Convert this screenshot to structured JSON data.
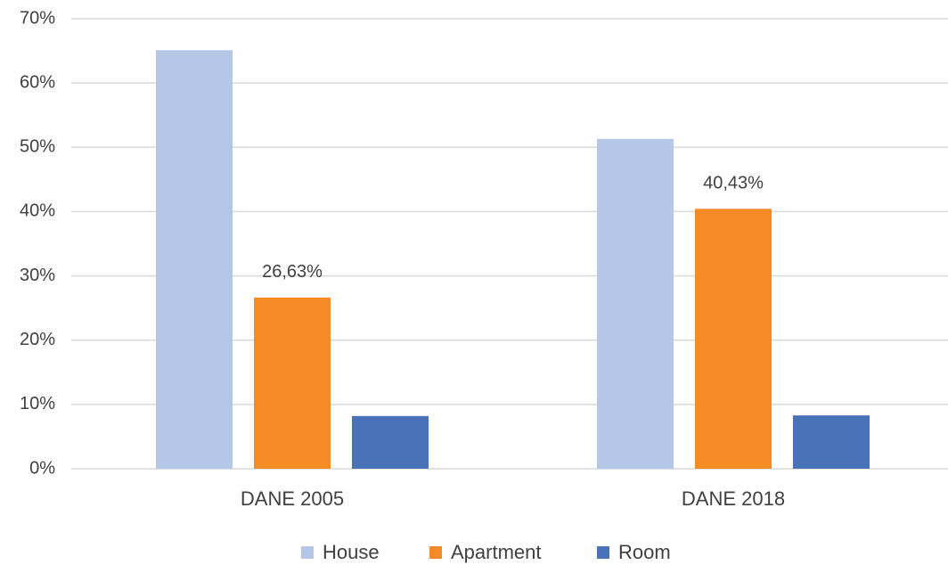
{
  "chart_data": {
    "type": "bar",
    "categories": [
      "DANE 2005",
      "DANE 2018"
    ],
    "series": [
      {
        "name": "House",
        "color": "#b4c7e7",
        "values": [
          65.1,
          51.3
        ]
      },
      {
        "name": "Apartment",
        "color": "#f58b24",
        "values": [
          26.63,
          40.43
        ],
        "value_labels": [
          "26,63%",
          "40,43%"
        ]
      },
      {
        "name": "Room",
        "color": "#4a72b8",
        "values": [
          8.2,
          8.3
        ]
      }
    ],
    "ylim": [
      0,
      70
    ],
    "yticks": [
      {
        "value": 0,
        "label": "0%"
      },
      {
        "value": 10,
        "label": "10%"
      },
      {
        "value": 20,
        "label": "20%"
      },
      {
        "value": 30,
        "label": "30%"
      },
      {
        "value": 40,
        "label": "40%"
      },
      {
        "value": 50,
        "label": "50%"
      },
      {
        "value": 60,
        "label": "60%"
      },
      {
        "value": 70,
        "label": "70%"
      }
    ],
    "grid": true,
    "legend": "bottom"
  }
}
